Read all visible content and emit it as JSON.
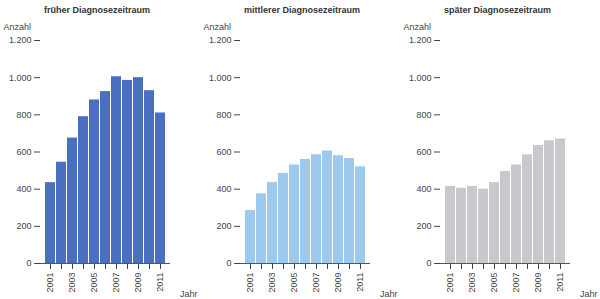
{
  "chart_data": [
    {
      "type": "bar",
      "title": "früher Diagnosezeitraum",
      "x_label": "Jahr",
      "y_label": "Anzahl",
      "categories": [
        "2001",
        null,
        "2003",
        null,
        "2005",
        null,
        "2007",
        null,
        "2009",
        null,
        "2011"
      ],
      "values": [
        435,
        545,
        675,
        790,
        880,
        925,
        1005,
        985,
        1000,
        930,
        810
      ],
      "color": "#4a6fc0",
      "ylim": [
        0,
        1200
      ],
      "yticks": [
        0,
        200,
        400,
        600,
        800,
        {
          "value": 1000,
          "label": "1.000"
        },
        {
          "value": 1200,
          "label": "1.200"
        }
      ]
    },
    {
      "type": "bar",
      "title": "mittlerer Diagnosezeitraum",
      "x_label": "Jahr",
      "y_label": "Anzahl",
      "categories": [
        "2001",
        null,
        "2003",
        null,
        "2005",
        null,
        "2007",
        null,
        "2009",
        null,
        "2011"
      ],
      "values": [
        285,
        375,
        435,
        485,
        530,
        560,
        585,
        605,
        580,
        565,
        520
      ],
      "color": "#9dc9ec",
      "ylim": [
        0,
        1200
      ],
      "yticks": [
        0,
        200,
        400,
        600,
        800,
        {
          "value": 1000,
          "label": "1.000"
        },
        {
          "value": 1200,
          "label": "1.200"
        }
      ]
    },
    {
      "type": "bar",
      "title": "später Diagnosezeitraum",
      "x_label": "Jahr",
      "y_label": "Anzahl",
      "categories": [
        "2001",
        null,
        "2003",
        null,
        "2005",
        null,
        "2007",
        null,
        "2009",
        null,
        "2011"
      ],
      "values": [
        415,
        405,
        415,
        400,
        435,
        495,
        530,
        585,
        635,
        660,
        670
      ],
      "color": "#c7c9cc",
      "ylim": [
        0,
        1200
      ],
      "yticks": [
        0,
        200,
        400,
        600,
        800,
        {
          "value": 1000,
          "label": "1.000"
        },
        {
          "value": 1200,
          "label": "1.200"
        }
      ]
    }
  ]
}
